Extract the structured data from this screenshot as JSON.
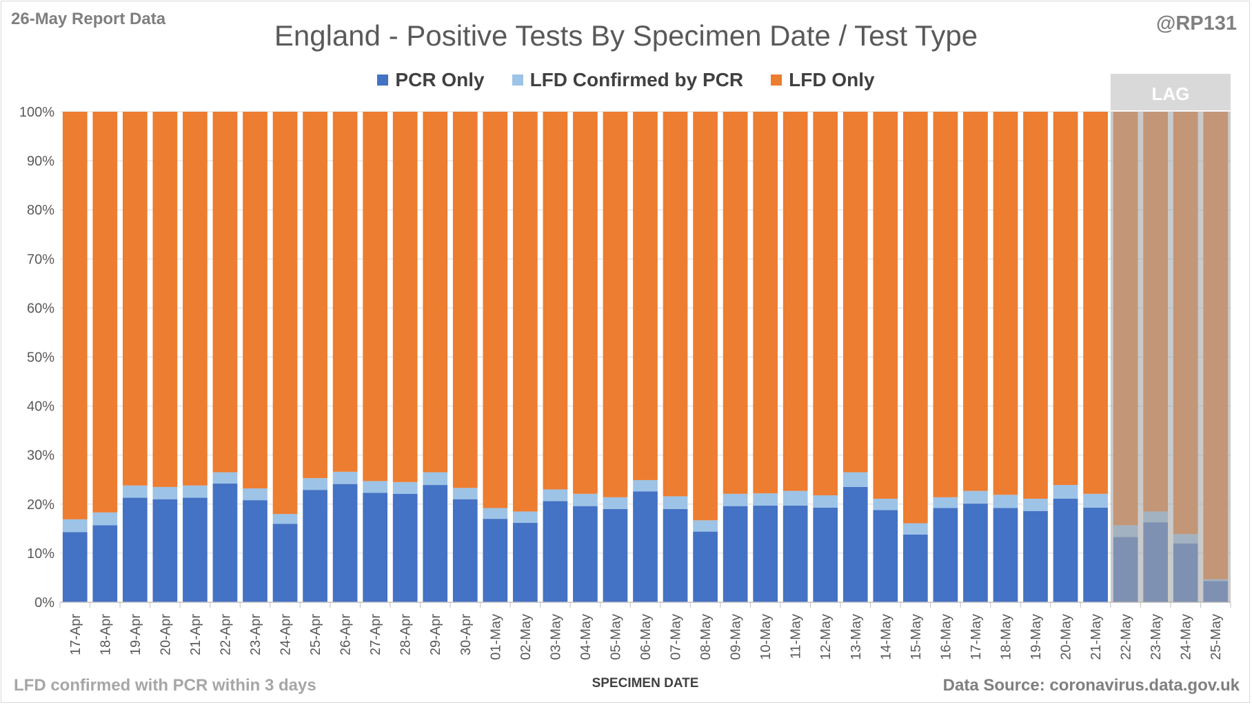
{
  "header": {
    "report_label": "26-May Report Data",
    "attribution": "@RP131"
  },
  "footer": {
    "note": "LFD confirmed with PCR within 3 days",
    "source": "Data Source: coronavirus.data.gov.uk"
  },
  "colors": {
    "pcr_only": "#4472c4",
    "lfd_confirmed": "#9dc3e6",
    "lfd_only": "#ed7d31",
    "lag_band": "#a6a6a6",
    "grid": "#d9d9d9"
  },
  "chart_data": {
    "type": "bar",
    "stacked": true,
    "title": "England - Positive Tests By Specimen Date / Test Type",
    "xlabel": "SPECIMEN DATE",
    "ylabel": "",
    "ylim": [
      0,
      100
    ],
    "y_ticks": [
      "0%",
      "10%",
      "20%",
      "30%",
      "40%",
      "50%",
      "60%",
      "70%",
      "80%",
      "90%",
      "100%"
    ],
    "grid": true,
    "legend_position": "top",
    "lag_label": "LAG",
    "lag_categories": [
      "22-May",
      "23-May",
      "24-May",
      "25-May"
    ],
    "categories": [
      "17-Apr",
      "18-Apr",
      "19-Apr",
      "20-Apr",
      "21-Apr",
      "22-Apr",
      "23-Apr",
      "24-Apr",
      "25-Apr",
      "26-Apr",
      "27-Apr",
      "28-Apr",
      "29-Apr",
      "30-Apr",
      "01-May",
      "02-May",
      "03-May",
      "04-May",
      "05-May",
      "06-May",
      "07-May",
      "08-May",
      "09-May",
      "10-May",
      "11-May",
      "12-May",
      "13-May",
      "14-May",
      "15-May",
      "16-May",
      "17-May",
      "18-May",
      "19-May",
      "20-May",
      "21-May",
      "22-May",
      "23-May",
      "24-May",
      "25-May"
    ],
    "series": [
      {
        "name": "PCR Only",
        "values": [
          14.3,
          15.7,
          21.3,
          21.0,
          21.3,
          24.2,
          20.8,
          16.0,
          22.9,
          24.1,
          22.3,
          22.1,
          23.9,
          21.0,
          17.0,
          16.2,
          20.6,
          19.6,
          19.0,
          22.6,
          19.0,
          14.4,
          19.6,
          19.7,
          19.7,
          19.3,
          23.5,
          18.8,
          13.8,
          19.2,
          20.1,
          19.2,
          18.6,
          21.1,
          19.3,
          13.3,
          16.3,
          12.0,
          4.3
        ]
      },
      {
        "name": "LFD Confirmed by PCR",
        "values": [
          2.6,
          2.6,
          2.5,
          2.5,
          2.5,
          2.3,
          2.4,
          2.0,
          2.4,
          2.5,
          2.4,
          2.4,
          2.6,
          2.3,
          2.2,
          2.3,
          2.4,
          2.5,
          2.4,
          2.3,
          2.6,
          2.3,
          2.5,
          2.5,
          3.0,
          2.5,
          3.0,
          2.3,
          2.3,
          2.2,
          2.6,
          2.7,
          2.5,
          2.8,
          2.8,
          2.4,
          2.2,
          1.9,
          0.4
        ]
      },
      {
        "name": "LFD Only",
        "values": [
          83.1,
          81.7,
          76.2,
          76.5,
          76.2,
          73.5,
          76.8,
          82.0,
          74.7,
          73.4,
          75.3,
          75.5,
          73.5,
          76.7,
          80.8,
          81.5,
          77.0,
          77.9,
          78.6,
          75.1,
          78.4,
          83.3,
          77.9,
          77.8,
          77.3,
          78.2,
          73.5,
          78.9,
          83.9,
          78.6,
          77.3,
          78.1,
          78.9,
          76.1,
          77.9,
          84.3,
          81.5,
          86.1,
          95.3
        ]
      }
    ]
  }
}
